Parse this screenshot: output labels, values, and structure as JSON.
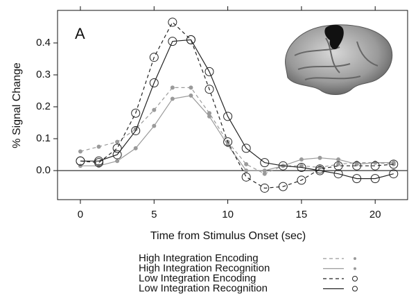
{
  "chart_data": {
    "type": "line",
    "annotation": "A",
    "x_label": "Time from Stimulus Onset (sec)",
    "y_label": "% Signal Change",
    "x": [
      0,
      1.25,
      2.5,
      3.75,
      5,
      6.25,
      7.5,
      8.75,
      10,
      11.25,
      12.5,
      13.75,
      15,
      16.25,
      17.5,
      18.75,
      20,
      21.25
    ],
    "series": [
      {
        "name": "High Integration Encoding",
        "color": "#9a9a9a",
        "dashed": true,
        "marker": "dot",
        "values": [
          0.06,
          0.075,
          0.09,
          0.13,
          0.19,
          0.26,
          0.26,
          0.18,
          0.09,
          0.02,
          -0.01,
          0.015,
          0.015,
          0.01,
          0.02,
          0.025,
          0.025,
          0.02
        ]
      },
      {
        "name": "High Integration Recognition",
        "color": "#9a9a9a",
        "dashed": false,
        "marker": "dot",
        "values": [
          0.015,
          0.015,
          0.03,
          0.07,
          0.14,
          0.225,
          0.235,
          0.17,
          0.08,
          0.0,
          0.0,
          0.015,
          0.035,
          0.04,
          0.035,
          0.02,
          0.025,
          0.025
        ]
      },
      {
        "name": "Low Integration Encoding",
        "color": "#222222",
        "dashed": true,
        "marker": "circle",
        "values": [
          0.03,
          0.025,
          0.07,
          0.18,
          0.355,
          0.465,
          0.41,
          0.255,
          0.09,
          -0.02,
          -0.055,
          -0.05,
          -0.03,
          0.005,
          0.015,
          0.015,
          0.015,
          0.02
        ]
      },
      {
        "name": "Low Integration Recognition",
        "color": "#222222",
        "dashed": false,
        "marker": "circle",
        "values": [
          0.03,
          0.03,
          0.05,
          0.125,
          0.275,
          0.405,
          0.41,
          0.31,
          0.17,
          0.07,
          0.025,
          0.015,
          0.01,
          0.0,
          -0.01,
          -0.025,
          -0.025,
          -0.01
        ]
      }
    ],
    "xlim": [
      -1.55,
      22.2
    ],
    "xticks": [
      0,
      5,
      10,
      15,
      20
    ],
    "ylim": [
      -0.091,
      0.502
    ],
    "yticks": [
      {
        "value": 0,
        "label": "0.0"
      },
      0.1,
      0.2,
      0.3,
      0.4
    ],
    "reference_line": 0,
    "grid": false,
    "legend": "bottom"
  }
}
